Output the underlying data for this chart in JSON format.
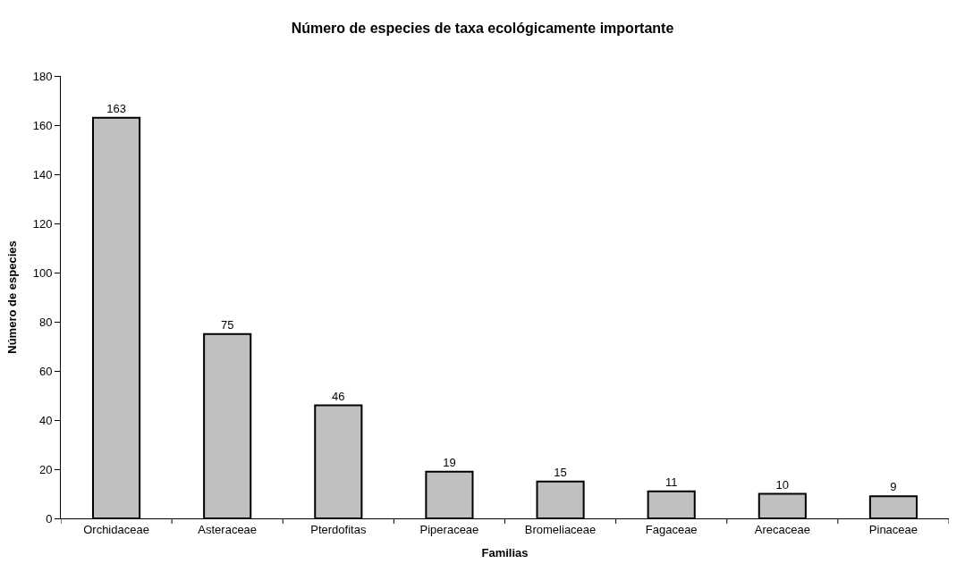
{
  "chart_data": {
    "type": "bar",
    "title": "Número de especies de taxa ecológicamente importante",
    "xlabel": "Familias",
    "ylabel": "Número de especies",
    "categories": [
      "Orchidaceae",
      "Asteraceae",
      "Pterdofitas",
      "Piperaceae",
      "Bromeliaceae",
      "Fagaceae",
      "Arecaceae",
      "Pinaceae"
    ],
    "values": [
      163,
      75,
      46,
      19,
      15,
      11,
      10,
      9
    ],
    "color": "#c0c0c0",
    "ylim": [
      0,
      180
    ],
    "yticks": [
      0,
      20,
      40,
      60,
      80,
      100,
      120,
      140,
      160,
      180
    ],
    "data_labels": true
  }
}
